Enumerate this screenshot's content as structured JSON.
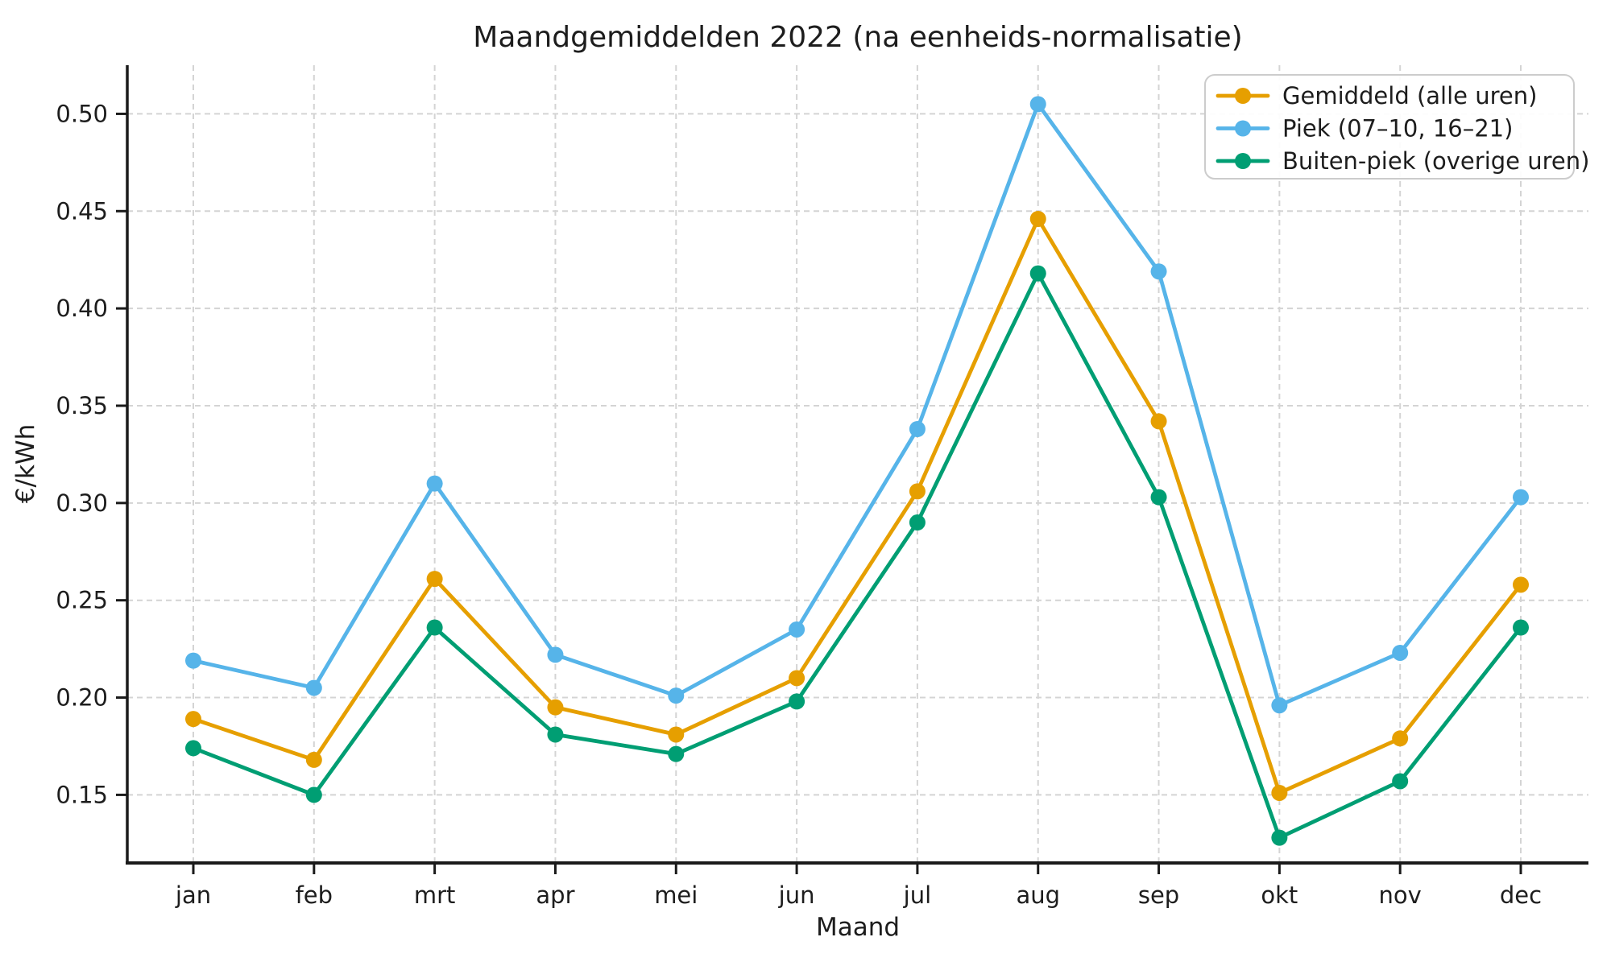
{
  "chart_data": {
    "type": "line",
    "title": "Maandgemiddelden 2022 (na eenheids-normalisatie)",
    "xlabel": "Maand",
    "ylabel": "€/kWh",
    "categories": [
      "jan",
      "feb",
      "mrt",
      "apr",
      "mei",
      "jun",
      "jul",
      "aug",
      "sep",
      "okt",
      "nov",
      "dec"
    ],
    "series": [
      {
        "name": "Gemiddeld (alle uren)",
        "color": "#E69F00",
        "values": [
          0.189,
          0.168,
          0.261,
          0.195,
          0.181,
          0.21,
          0.306,
          0.446,
          0.342,
          0.151,
          0.179,
          0.258
        ]
      },
      {
        "name": "Piek (07–10, 16–21)",
        "color": "#56B4E9",
        "values": [
          0.219,
          0.205,
          0.31,
          0.222,
          0.201,
          0.235,
          0.338,
          0.505,
          0.419,
          0.196,
          0.223,
          0.303
        ]
      },
      {
        "name": "Buiten-piek (overige uren)",
        "color": "#009E73",
        "values": [
          0.174,
          0.15,
          0.236,
          0.181,
          0.171,
          0.198,
          0.29,
          0.418,
          0.303,
          0.128,
          0.157,
          0.236
        ]
      }
    ],
    "ylim": [
      0.115,
      0.525
    ],
    "yticks": [
      0.15,
      0.2,
      0.25,
      0.3,
      0.35,
      0.4,
      0.45,
      0.5
    ],
    "ytick_labels": [
      "0.15",
      "0.20",
      "0.25",
      "0.30",
      "0.35",
      "0.40",
      "0.45",
      "0.50"
    ],
    "grid": true,
    "legend_position": "upper right"
  },
  "styles": {
    "text_color": "#1d1d1d",
    "axis_color": "#1a1a1a",
    "grid_color": "#d4d4d4",
    "legend_border_color": "#cccccc",
    "background_color": "#ffffff"
  }
}
